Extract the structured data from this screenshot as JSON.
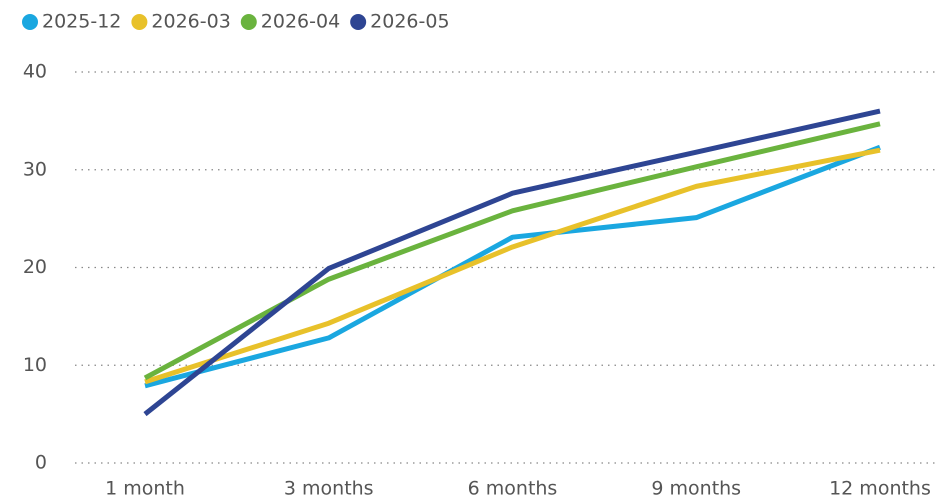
{
  "chart_data": {
    "type": "line",
    "categories": [
      "1 month",
      "3 months",
      "6 months",
      "9 months",
      "12 months"
    ],
    "series": [
      {
        "name": "2025-12",
        "color": "#1aa7e0",
        "values": [
          7.9,
          12.8,
          23.1,
          25.1,
          32.3
        ]
      },
      {
        "name": "2026-03",
        "color": "#e8c12a",
        "values": [
          8.3,
          14.3,
          22.1,
          28.3,
          32.0
        ]
      },
      {
        "name": "2026-04",
        "color": "#6ab33e",
        "values": [
          8.7,
          18.8,
          25.8,
          30.3,
          34.7
        ]
      },
      {
        "name": "2026-05",
        "color": "#2e4593",
        "values": [
          5.0,
          19.9,
          27.6,
          31.8,
          36.0
        ]
      }
    ],
    "ylim": [
      0,
      40
    ],
    "yticks": [
      0,
      10,
      20,
      30,
      40
    ],
    "grid": true,
    "legend": "top"
  }
}
